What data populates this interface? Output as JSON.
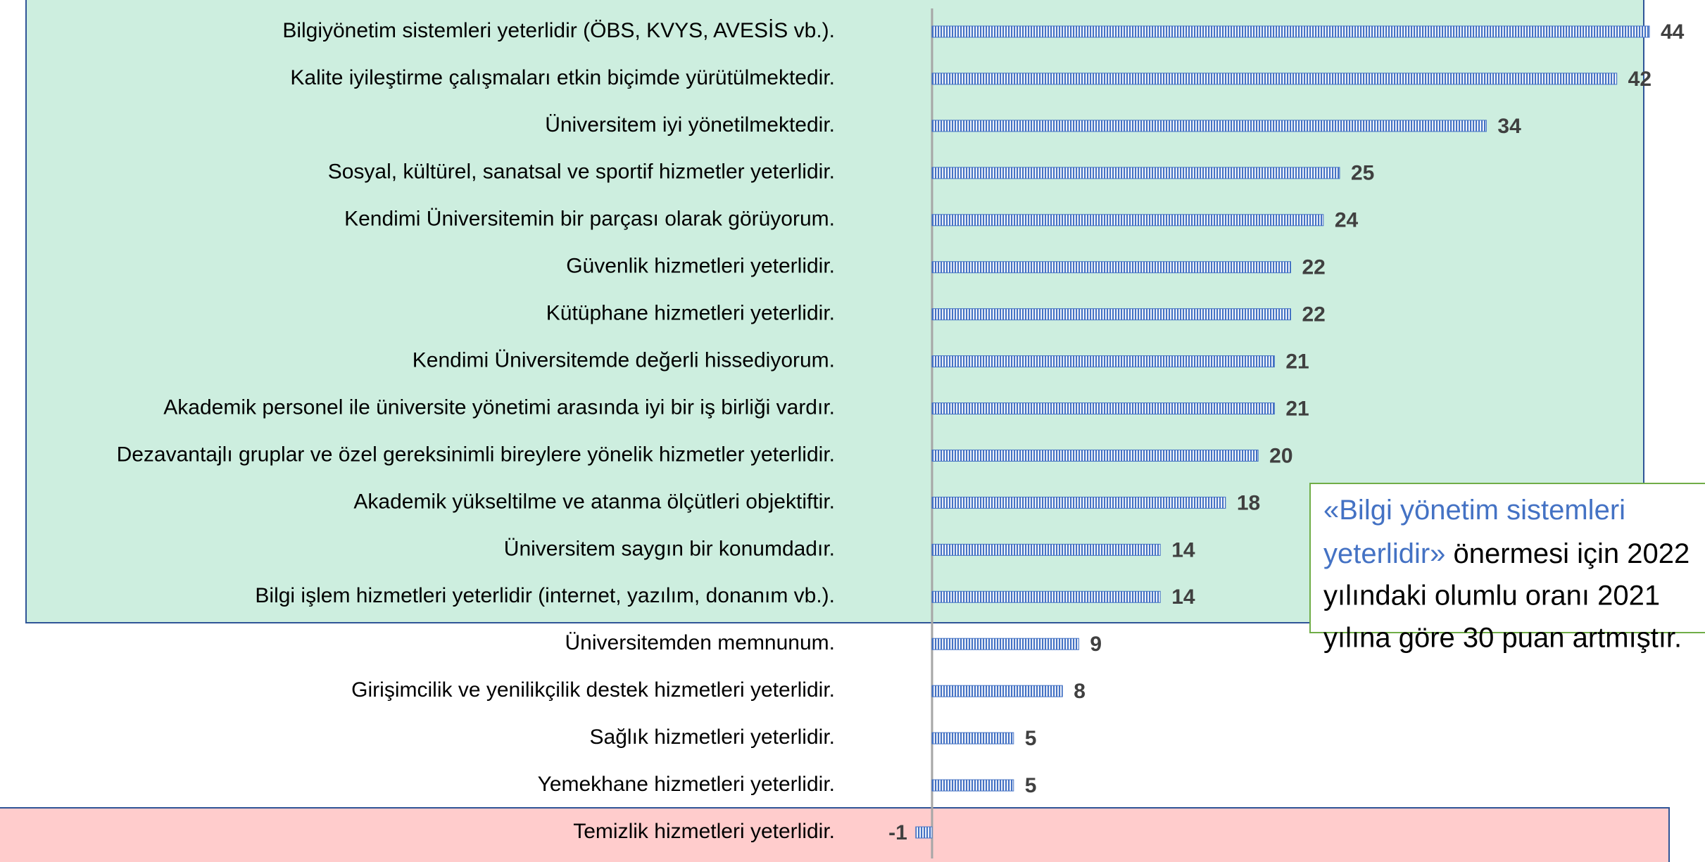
{
  "chart_data": {
    "type": "hbar",
    "categories": [
      "Bilgiyönetim sistemleri yeterlidir (ÖBS, KVYS, AVESİS vb.).",
      "Kalite iyileştirme çalışmaları etkin biçimde yürütülmektedir.",
      "Üniversitem iyi yönetilmektedir.",
      "Sosyal, kültürel, sanatsal ve sportif hizmetler yeterlidir.",
      "Kendimi Üniversitemin bir parçası olarak görüyorum.",
      "Güvenlik hizmetleri yeterlidir.",
      "Kütüphane hizmetleri yeterlidir.",
      "Kendimi Üniversitemde değerli hissediyorum.",
      "Akademik personel ile üniversite yönetimi arasında iyi bir iş birliği vardır.",
      "Dezavantajlı gruplar ve özel gereksinimli bireylere yönelik hizmetler yeterlidir.",
      "Akademik yükseltilme ve atanma ölçütleri objektiftir.",
      "Üniversitem saygın bir konumdadır.",
      "Bilgi işlem hizmetleri yeterlidir (internet, yazılım, donanım vb.).",
      "Üniversitemden memnunum.",
      "Girişimcilik ve yenilikçilik destek hizmetleri yeterlidir.",
      "Sağlık hizmetleri yeterlidir.",
      "Yemekhane hizmetleri yeterlidir.",
      "Temizlik hizmetleri yeterlidir."
    ],
    "values": [
      44,
      42,
      34,
      25,
      24,
      22,
      22,
      21,
      21,
      20,
      18,
      14,
      14,
      9,
      8,
      5,
      5,
      -1
    ],
    "color": "#4472c4",
    "annotation": {
      "highlight": [
        "«Bilgi yönetim sistemleri",
        "yeterlidir»"
      ],
      "text": [
        "önermesi için 2022",
        "yılındaki olumlu oranı 2021",
        "yılına göre 30 puan artmıştır."
      ]
    }
  }
}
